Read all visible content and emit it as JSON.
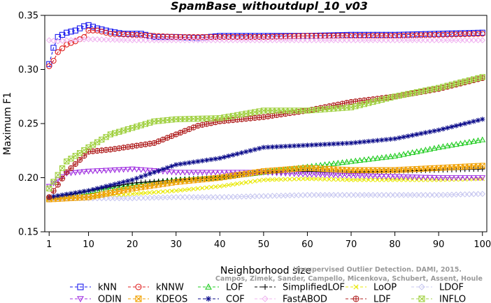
{
  "chart_data": {
    "type": "line",
    "title": "SpamBase_withoutdupl_10_v03",
    "xlabel": "Neighborhood size",
    "ylabel": "Maximum F1",
    "xlim": [
      0,
      101
    ],
    "ylim": [
      0.15,
      0.35
    ],
    "xticks": [
      1,
      10,
      20,
      30,
      40,
      50,
      60,
      70,
      80,
      90,
      100
    ],
    "yticks": [
      0.15,
      0.2,
      0.25,
      0.3,
      0.35
    ],
    "xtick_labels": [
      "1",
      "10",
      "20",
      "30",
      "40",
      "50",
      "60",
      "70",
      "80",
      "90",
      "100"
    ],
    "ytick_labels": [
      "0.15",
      "0.20",
      "0.25",
      "0.30",
      "0.35"
    ],
    "grid": false,
    "legend_position": "bottom",
    "watermark": [
      "Campos, Zimek, Sander, Campello, Micenkova, Schubert, Assent, Houle",
      "Unsupervised Outlier Detection. DAMI, 2015."
    ],
    "series": [
      {
        "name": "kNN",
        "color": "#1a1aee",
        "marker": "square",
        "x": [
          1,
          2,
          3,
          5,
          7,
          9,
          10,
          12,
          15,
          18,
          20,
          22,
          25,
          30,
          35,
          40,
          50,
          60,
          70,
          80,
          90,
          100
        ],
        "values": [
          0.305,
          0.32,
          0.33,
          0.334,
          0.336,
          0.34,
          0.341,
          0.338,
          0.335,
          0.333,
          0.333,
          0.333,
          0.33,
          0.33,
          0.329,
          0.331,
          0.331,
          0.331,
          0.332,
          0.332,
          0.333,
          0.334
        ]
      },
      {
        "name": "kNNW",
        "color": "#e02020",
        "marker": "circle",
        "x": [
          1,
          2,
          3,
          5,
          7,
          9,
          10,
          12,
          15,
          20,
          25,
          30,
          40,
          50,
          60,
          70,
          80,
          90,
          100
        ],
        "values": [
          0.303,
          0.308,
          0.316,
          0.323,
          0.326,
          0.33,
          0.336,
          0.336,
          0.333,
          0.332,
          0.331,
          0.33,
          0.33,
          0.33,
          0.331,
          0.331,
          0.331,
          0.332,
          0.333
        ]
      },
      {
        "name": "LOF",
        "color": "#22cc22",
        "marker": "triangle-up",
        "x": [
          1,
          10,
          20,
          30,
          40,
          50,
          60,
          70,
          80,
          90,
          100
        ],
        "values": [
          0.181,
          0.187,
          0.193,
          0.198,
          0.2,
          0.205,
          0.21,
          0.215,
          0.22,
          0.228,
          0.235
        ]
      },
      {
        "name": "SimplifiedLOF",
        "color": "#000000",
        "marker": "plus",
        "x": [
          1,
          10,
          20,
          30,
          40,
          50,
          60,
          70,
          80,
          90,
          100
        ],
        "values": [
          0.18,
          0.188,
          0.195,
          0.198,
          0.2,
          0.205,
          0.206,
          0.205,
          0.206,
          0.207,
          0.208
        ]
      },
      {
        "name": "LoOP",
        "color": "#e8e800",
        "marker": "x",
        "x": [
          1,
          10,
          20,
          30,
          40,
          50,
          60,
          70,
          80,
          90,
          100
        ],
        "values": [
          0.181,
          0.182,
          0.185,
          0.188,
          0.192,
          0.198,
          0.199,
          0.198,
          0.198,
          0.198,
          0.199
        ]
      },
      {
        "name": "LDOF",
        "color": "#c8c8f0",
        "marker": "diamond",
        "x": [
          1,
          10,
          20,
          30,
          40,
          50,
          60,
          70,
          80,
          90,
          100
        ],
        "values": [
          0.181,
          0.181,
          0.181,
          0.182,
          0.182,
          0.183,
          0.184,
          0.184,
          0.184,
          0.184,
          0.185
        ]
      },
      {
        "name": "ODIN",
        "color": "#a030e0",
        "marker": "triangle-down",
        "x": [
          1,
          5,
          10,
          20,
          30,
          40,
          50,
          60,
          70,
          80,
          90,
          100
        ],
        "values": [
          0.192,
          0.204,
          0.206,
          0.208,
          0.205,
          0.205,
          0.205,
          0.203,
          0.202,
          0.201,
          0.2,
          0.2
        ]
      },
      {
        "name": "KDEOS",
        "color": "#f0a000",
        "marker": "square-cross",
        "x": [
          1,
          10,
          20,
          30,
          40,
          50,
          60,
          70,
          80,
          90,
          100
        ],
        "values": [
          0.18,
          0.182,
          0.19,
          0.196,
          0.2,
          0.206,
          0.209,
          0.207,
          0.207,
          0.209,
          0.211
        ]
      },
      {
        "name": "COF",
        "color": "#0a0a8a",
        "marker": "asterisk",
        "x": [
          1,
          10,
          20,
          30,
          40,
          50,
          60,
          70,
          80,
          90,
          100
        ],
        "values": [
          0.182,
          0.188,
          0.198,
          0.212,
          0.218,
          0.228,
          0.23,
          0.232,
          0.236,
          0.244,
          0.254
        ]
      },
      {
        "name": "FastABOD",
        "color": "#f0b4f0",
        "marker": "diamond",
        "x": [
          1,
          3,
          5,
          10,
          20,
          30,
          40,
          50,
          60,
          70,
          80,
          90,
          100
        ],
        "values": [
          0.327,
          0.326,
          0.327,
          0.328,
          0.327,
          0.327,
          0.327,
          0.327,
          0.327,
          0.327,
          0.327,
          0.327,
          0.327
        ]
      },
      {
        "name": "LDF",
        "color": "#b02020",
        "marker": "circle-plus",
        "x": [
          1,
          5,
          10,
          15,
          20,
          25,
          30,
          35,
          40,
          50,
          60,
          70,
          80,
          90,
          100
        ],
        "values": [
          0.182,
          0.205,
          0.224,
          0.226,
          0.229,
          0.232,
          0.24,
          0.248,
          0.252,
          0.256,
          0.262,
          0.27,
          0.275,
          0.282,
          0.292
        ]
      },
      {
        "name": "INFLO",
        "color": "#a0d040",
        "marker": "x-box",
        "x": [
          1,
          5,
          10,
          15,
          20,
          25,
          30,
          40,
          50,
          60,
          70,
          80,
          90,
          100
        ],
        "values": [
          0.19,
          0.215,
          0.228,
          0.24,
          0.246,
          0.252,
          0.254,
          0.255,
          0.262,
          0.262,
          0.265,
          0.275,
          0.283,
          0.293
        ]
      }
    ],
    "legend_order": [
      [
        "kNN",
        "kNNW",
        "LOF",
        "SimplifiedLOF",
        "LoOP",
        "LDOF"
      ],
      [
        "ODIN",
        "KDEOS",
        "COF",
        "FastABOD",
        "LDF",
        "INFLO"
      ]
    ]
  }
}
